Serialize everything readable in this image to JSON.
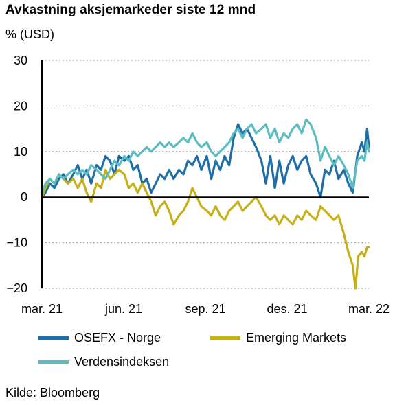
{
  "chart_data": {
    "type": "line",
    "title": "Avkastning aksjemarkeder siste 12 mnd",
    "ylabel": "% (USD)",
    "ylim": [
      -20,
      30
    ],
    "yticks": [
      30,
      20,
      10,
      0,
      -10,
      -20
    ],
    "xticks": [
      "mar. 21",
      "jun. 21",
      "sep. 21",
      "des. 21",
      "mar. 22"
    ],
    "x_range": [
      "2021-03-01",
      "2022-03-01"
    ],
    "grid": "horizontal dotted",
    "legend_position": "bottom",
    "source": "Kilde: Bloomberg",
    "series": [
      {
        "name": "OSEFX - Norge",
        "color": "#1f6ea8",
        "points": [
          [
            "2021-03-01",
            0
          ],
          [
            "2021-03-05",
            1
          ],
          [
            "2021-03-10",
            3
          ],
          [
            "2021-03-15",
            2
          ],
          [
            "2021-03-20",
            4
          ],
          [
            "2021-03-25",
            5
          ],
          [
            "2021-03-30",
            3
          ],
          [
            "2021-04-05",
            5
          ],
          [
            "2021-04-10",
            7
          ],
          [
            "2021-04-15",
            4
          ],
          [
            "2021-04-20",
            6
          ],
          [
            "2021-04-25",
            3
          ],
          [
            "2021-05-01",
            7
          ],
          [
            "2021-05-06",
            6
          ],
          [
            "2021-05-11",
            9
          ],
          [
            "2021-05-16",
            8
          ],
          [
            "2021-05-21",
            5
          ],
          [
            "2021-05-26",
            9
          ],
          [
            "2021-06-01",
            8
          ],
          [
            "2021-06-06",
            9
          ],
          [
            "2021-06-11",
            6
          ],
          [
            "2021-06-16",
            7
          ],
          [
            "2021-06-21",
            3
          ],
          [
            "2021-06-26",
            4
          ],
          [
            "2021-07-01",
            1
          ],
          [
            "2021-07-06",
            3
          ],
          [
            "2021-07-11",
            5
          ],
          [
            "2021-07-16",
            4
          ],
          [
            "2021-07-21",
            6
          ],
          [
            "2021-07-26",
            4
          ],
          [
            "2021-08-01",
            6
          ],
          [
            "2021-08-06",
            5
          ],
          [
            "2021-08-11",
            8
          ],
          [
            "2021-08-16",
            7
          ],
          [
            "2021-08-21",
            9
          ],
          [
            "2021-08-26",
            6
          ],
          [
            "2021-09-01",
            9
          ],
          [
            "2021-09-06",
            4
          ],
          [
            "2021-09-11",
            8
          ],
          [
            "2021-09-16",
            6
          ],
          [
            "2021-09-21",
            9
          ],
          [
            "2021-09-26",
            7
          ],
          [
            "2021-10-01",
            13
          ],
          [
            "2021-10-06",
            16
          ],
          [
            "2021-10-11",
            14
          ],
          [
            "2021-10-16",
            15
          ],
          [
            "2021-10-21",
            13
          ],
          [
            "2021-10-26",
            11
          ],
          [
            "2021-11-01",
            8
          ],
          [
            "2021-11-06",
            3
          ],
          [
            "2021-11-11",
            9
          ],
          [
            "2021-11-16",
            2
          ],
          [
            "2021-11-21",
            8
          ],
          [
            "2021-11-26",
            3
          ],
          [
            "2021-12-01",
            7
          ],
          [
            "2021-12-06",
            9
          ],
          [
            "2021-12-11",
            6
          ],
          [
            "2021-12-16",
            8
          ],
          [
            "2021-12-21",
            9
          ],
          [
            "2021-12-26",
            5
          ],
          [
            "2022-01-01",
            3
          ],
          [
            "2022-01-06",
            0
          ],
          [
            "2022-01-11",
            6
          ],
          [
            "2022-01-16",
            5
          ],
          [
            "2022-01-21",
            8
          ],
          [
            "2022-01-26",
            4
          ],
          [
            "2022-02-01",
            6
          ],
          [
            "2022-02-06",
            3
          ],
          [
            "2022-02-11",
            1
          ],
          [
            "2022-02-16",
            9
          ],
          [
            "2022-02-21",
            12
          ],
          [
            "2022-02-24",
            10
          ],
          [
            "2022-02-27",
            15
          ],
          [
            "2022-03-01",
            11
          ]
        ]
      },
      {
        "name": "Emerging Markets",
        "color": "#c5b017",
        "points": [
          [
            "2021-03-01",
            0
          ],
          [
            "2021-03-05",
            2
          ],
          [
            "2021-03-10",
            4
          ],
          [
            "2021-03-15",
            3
          ],
          [
            "2021-03-20",
            5
          ],
          [
            "2021-03-25",
            4
          ],
          [
            "2021-03-30",
            3
          ],
          [
            "2021-04-05",
            4
          ],
          [
            "2021-04-10",
            2
          ],
          [
            "2021-04-15",
            4
          ],
          [
            "2021-04-20",
            1
          ],
          [
            "2021-04-25",
            -1
          ],
          [
            "2021-05-01",
            3
          ],
          [
            "2021-05-06",
            2
          ],
          [
            "2021-05-11",
            6
          ],
          [
            "2021-05-16",
            4
          ],
          [
            "2021-05-21",
            5
          ],
          [
            "2021-05-26",
            6
          ],
          [
            "2021-06-01",
            5
          ],
          [
            "2021-06-06",
            2
          ],
          [
            "2021-06-11",
            3
          ],
          [
            "2021-06-16",
            1
          ],
          [
            "2021-06-21",
            3
          ],
          [
            "2021-06-26",
            1
          ],
          [
            "2021-07-01",
            -1
          ],
          [
            "2021-07-06",
            -4
          ],
          [
            "2021-07-11",
            -2
          ],
          [
            "2021-07-16",
            -1
          ],
          [
            "2021-07-21",
            -3
          ],
          [
            "2021-07-26",
            -6
          ],
          [
            "2021-08-01",
            -4
          ],
          [
            "2021-08-06",
            -3
          ],
          [
            "2021-08-11",
            -1
          ],
          [
            "2021-08-16",
            2
          ],
          [
            "2021-08-21",
            0
          ],
          [
            "2021-08-26",
            -2
          ],
          [
            "2021-09-01",
            -3
          ],
          [
            "2021-09-06",
            -4
          ],
          [
            "2021-09-11",
            -2
          ],
          [
            "2021-09-16",
            -4
          ],
          [
            "2021-09-21",
            -5
          ],
          [
            "2021-09-26",
            -3
          ],
          [
            "2021-10-01",
            -2
          ],
          [
            "2021-10-06",
            -1
          ],
          [
            "2021-10-11",
            -3
          ],
          [
            "2021-10-16",
            -2
          ],
          [
            "2021-10-21",
            -1
          ],
          [
            "2021-10-26",
            0
          ],
          [
            "2021-11-01",
            -2
          ],
          [
            "2021-11-06",
            -4
          ],
          [
            "2021-11-11",
            -5
          ],
          [
            "2021-11-16",
            -4
          ],
          [
            "2021-11-21",
            -6
          ],
          [
            "2021-11-26",
            -4
          ],
          [
            "2021-12-01",
            -5
          ],
          [
            "2021-12-06",
            -6
          ],
          [
            "2021-12-11",
            -4
          ],
          [
            "2021-12-16",
            -5
          ],
          [
            "2021-12-21",
            -3
          ],
          [
            "2021-12-26",
            -4
          ],
          [
            "2022-01-01",
            -5
          ],
          [
            "2022-01-06",
            -2
          ],
          [
            "2022-01-11",
            -3
          ],
          [
            "2022-01-16",
            -4
          ],
          [
            "2022-01-21",
            -5
          ],
          [
            "2022-01-26",
            -4
          ],
          [
            "2022-02-01",
            -8
          ],
          [
            "2022-02-06",
            -12
          ],
          [
            "2022-02-11",
            -15
          ],
          [
            "2022-02-14",
            -20
          ],
          [
            "2022-02-17",
            -13
          ],
          [
            "2022-02-21",
            -12
          ],
          [
            "2022-02-24",
            -13
          ],
          [
            "2022-02-27",
            -11
          ],
          [
            "2022-03-01",
            -11
          ]
        ]
      },
      {
        "name": "Verdensindeksen",
        "color": "#5bbcc2",
        "points": [
          [
            "2021-03-01",
            1
          ],
          [
            "2021-03-05",
            3
          ],
          [
            "2021-03-10",
            4
          ],
          [
            "2021-03-15",
            3
          ],
          [
            "2021-03-20",
            5
          ],
          [
            "2021-03-25",
            4
          ],
          [
            "2021-03-30",
            5
          ],
          [
            "2021-04-05",
            6
          ],
          [
            "2021-04-10",
            5
          ],
          [
            "2021-04-15",
            6
          ],
          [
            "2021-04-20",
            5
          ],
          [
            "2021-04-25",
            7
          ],
          [
            "2021-05-01",
            6
          ],
          [
            "2021-05-06",
            5
          ],
          [
            "2021-05-11",
            4
          ],
          [
            "2021-05-16",
            6
          ],
          [
            "2021-05-21",
            8
          ],
          [
            "2021-05-26",
            7
          ],
          [
            "2021-06-01",
            9
          ],
          [
            "2021-06-06",
            8
          ],
          [
            "2021-06-11",
            10
          ],
          [
            "2021-06-16",
            9
          ],
          [
            "2021-06-21",
            10
          ],
          [
            "2021-06-26",
            11
          ],
          [
            "2021-07-01",
            10
          ],
          [
            "2021-07-06",
            11
          ],
          [
            "2021-07-11",
            12
          ],
          [
            "2021-07-16",
            11
          ],
          [
            "2021-07-21",
            12
          ],
          [
            "2021-07-26",
            11
          ],
          [
            "2021-08-01",
            12
          ],
          [
            "2021-08-06",
            13
          ],
          [
            "2021-08-11",
            12
          ],
          [
            "2021-08-16",
            14
          ],
          [
            "2021-08-21",
            12
          ],
          [
            "2021-08-26",
            11
          ],
          [
            "2021-09-01",
            12
          ],
          [
            "2021-09-06",
            10
          ],
          [
            "2021-09-11",
            9
          ],
          [
            "2021-09-16",
            10
          ],
          [
            "2021-09-21",
            11
          ],
          [
            "2021-09-26",
            12
          ],
          [
            "2021-10-01",
            14
          ],
          [
            "2021-10-06",
            15
          ],
          [
            "2021-10-11",
            13
          ],
          [
            "2021-10-16",
            15
          ],
          [
            "2021-10-21",
            16
          ],
          [
            "2021-10-26",
            14
          ],
          [
            "2021-11-01",
            15
          ],
          [
            "2021-11-06",
            16
          ],
          [
            "2021-11-11",
            13
          ],
          [
            "2021-11-16",
            15
          ],
          [
            "2021-11-21",
            12
          ],
          [
            "2021-11-26",
            14
          ],
          [
            "2021-12-01",
            13
          ],
          [
            "2021-12-06",
            15
          ],
          [
            "2021-12-11",
            16
          ],
          [
            "2021-12-16",
            14
          ],
          [
            "2021-12-21",
            17
          ],
          [
            "2021-12-26",
            16
          ],
          [
            "2022-01-01",
            13
          ],
          [
            "2022-01-06",
            8
          ],
          [
            "2022-01-11",
            11
          ],
          [
            "2022-01-16",
            9
          ],
          [
            "2022-01-21",
            7
          ],
          [
            "2022-01-26",
            9
          ],
          [
            "2022-02-01",
            7
          ],
          [
            "2022-02-06",
            5
          ],
          [
            "2022-02-11",
            2
          ],
          [
            "2022-02-16",
            8
          ],
          [
            "2022-02-21",
            9
          ],
          [
            "2022-02-24",
            8
          ],
          [
            "2022-02-27",
            12
          ],
          [
            "2022-03-01",
            10
          ]
        ]
      }
    ]
  }
}
